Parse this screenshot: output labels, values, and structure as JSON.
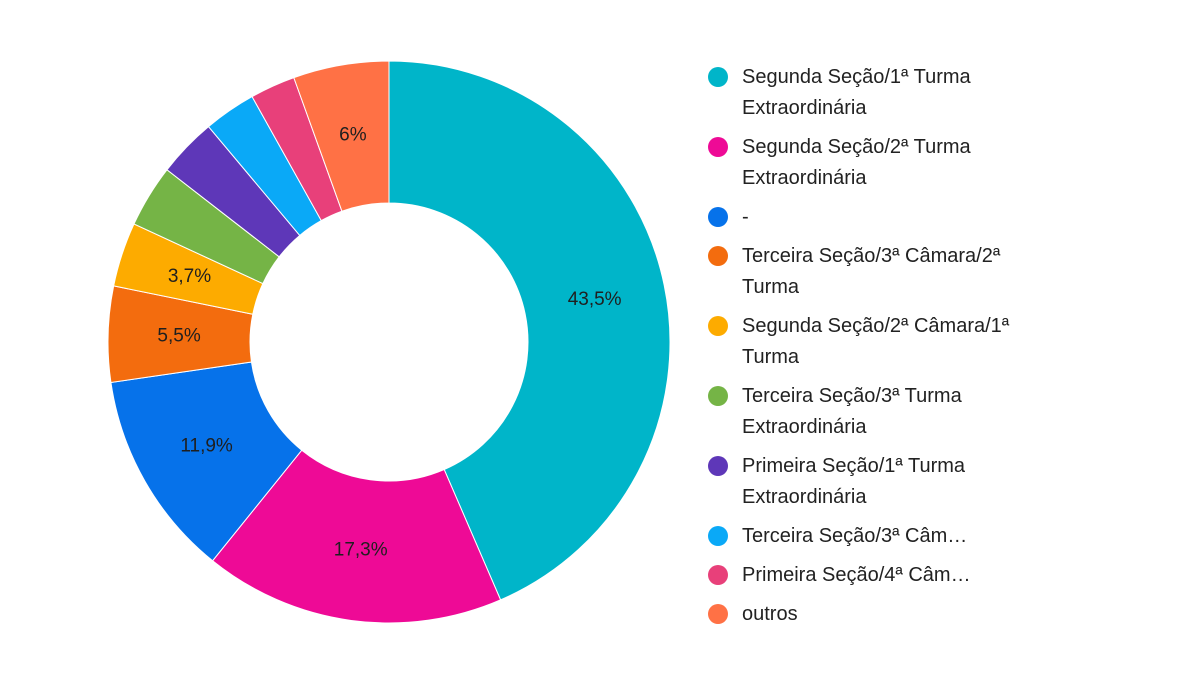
{
  "chart_data": {
    "type": "pie",
    "donut": true,
    "legend_position": "right",
    "slices": [
      {
        "label": "Segunda Seção/1ª Turma Extraordinária",
        "value": 43.5,
        "value_label": "43,5%",
        "color": "#00b5c9"
      },
      {
        "label": "Segunda Seção/2ª Turma Extraordinária",
        "value": 17.3,
        "value_label": "17,3%",
        "color": "#ee0a96"
      },
      {
        "label": "-",
        "value": 11.9,
        "value_label": "11,9%",
        "color": "#0672ea"
      },
      {
        "label": "Terceira Seção/3ª Câmara/2ª Turma",
        "value": 5.5,
        "value_label": "5,5%",
        "color": "#f36c0e"
      },
      {
        "label": "Segunda Seção/2ª Câmara/1ª Turma",
        "value": 3.7,
        "value_label": "3,7%",
        "color": "#fdab00"
      },
      {
        "label": "Terceira Seção/3ª Turma Extraordinária",
        "value": 3.6,
        "value_label": "",
        "color": "#75b446"
      },
      {
        "label": "Primeira Seção/1ª Turma Extraordinária",
        "value": 3.4,
        "value_label": "",
        "color": "#5e37b8"
      },
      {
        "label": "Terceira Seção/3ª Câm…",
        "value": 3.0,
        "value_label": "",
        "color": "#0aa9f7"
      },
      {
        "label": "Primeira Seção/4ª Câm…",
        "value": 2.6,
        "value_label": "",
        "color": "#e8407a"
      },
      {
        "label": "outros",
        "value": 5.5,
        "value_label": "6%",
        "color": "#ff7145"
      }
    ]
  }
}
